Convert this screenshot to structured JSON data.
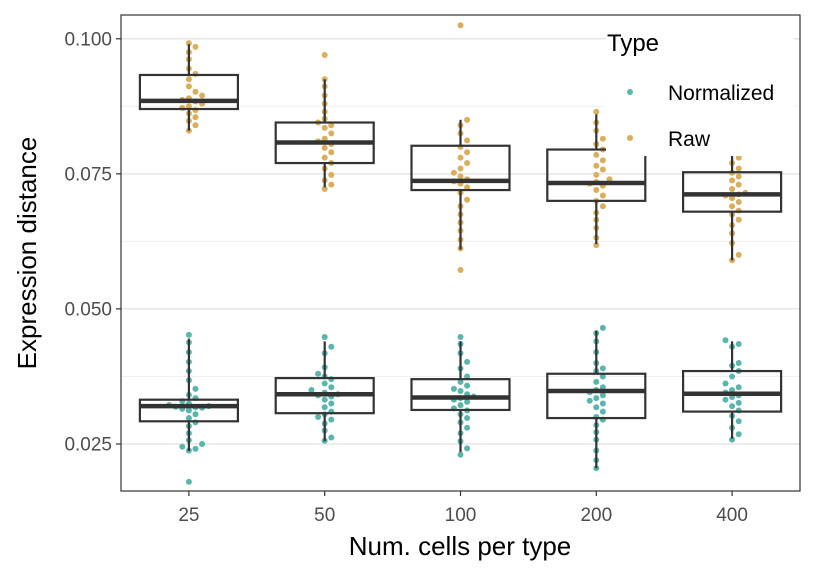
{
  "chart_data": {
    "type": "box",
    "xlabel": "Num. cells per type",
    "ylabel": "Expression distance",
    "categories": [
      "25",
      "50",
      "100",
      "200",
      "400"
    ],
    "ylim": [
      0.0163,
      0.1044
    ],
    "yticks": [
      0.025,
      0.05,
      0.075,
      0.1
    ],
    "ytick_labels": [
      "0.025",
      "0.050",
      "0.075",
      "0.100"
    ],
    "grid": true,
    "legend": {
      "title": "Type",
      "position": "top-right",
      "entries": [
        "Normalized",
        "Raw"
      ]
    },
    "series": [
      {
        "name": "Normalized",
        "color": "#5bb5ac",
        "boxes": [
          {
            "category": "25",
            "whisker_low": 0.0237,
            "q1": 0.0292,
            "median": 0.032,
            "q3": 0.0332,
            "whisker_high": 0.0445
          },
          {
            "category": "50",
            "whisker_low": 0.0255,
            "q1": 0.0307,
            "median": 0.0342,
            "q3": 0.0372,
            "whisker_high": 0.044
          },
          {
            "category": "100",
            "whisker_low": 0.0235,
            "q1": 0.0313,
            "median": 0.0336,
            "q3": 0.037,
            "whisker_high": 0.044
          },
          {
            "category": "200",
            "whisker_low": 0.0205,
            "q1": 0.0298,
            "median": 0.0348,
            "q3": 0.038,
            "whisker_high": 0.046
          },
          {
            "category": "400",
            "whisker_low": 0.026,
            "q1": 0.031,
            "median": 0.0343,
            "q3": 0.0385,
            "whisker_high": 0.044
          }
        ],
        "points": [
          [
            0.0452,
            0.0438,
            0.042,
            0.0402,
            0.0385,
            0.0368,
            0.0352,
            0.0341,
            0.0335,
            0.0329,
            0.0325,
            0.0322,
            0.032,
            0.0319,
            0.0318,
            0.0317,
            0.0315,
            0.0312,
            0.0305,
            0.0298,
            0.029,
            0.0283,
            0.027,
            0.0257,
            0.025,
            0.0245,
            0.0241,
            0.0238,
            0.018
          ],
          [
            0.0448,
            0.043,
            0.0418,
            0.0392,
            0.038,
            0.0375,
            0.037,
            0.0362,
            0.0355,
            0.035,
            0.0345,
            0.0342,
            0.034,
            0.0338,
            0.0332,
            0.0325,
            0.0318,
            0.031,
            0.0305,
            0.03,
            0.0295,
            0.0288,
            0.0275,
            0.0262,
            0.0256
          ],
          [
            0.0448,
            0.0435,
            0.0418,
            0.0402,
            0.039,
            0.0375,
            0.0365,
            0.0358,
            0.0352,
            0.0348,
            0.0342,
            0.0338,
            0.0335,
            0.0332,
            0.0328,
            0.0322,
            0.0316,
            0.0312,
            0.0305,
            0.0298,
            0.029,
            0.028,
            0.027,
            0.0255,
            0.0242,
            0.023
          ],
          [
            0.0465,
            0.0455,
            0.044,
            0.042,
            0.04,
            0.039,
            0.0385,
            0.0375,
            0.0365,
            0.0355,
            0.035,
            0.0346,
            0.034,
            0.0335,
            0.033,
            0.0325,
            0.0318,
            0.031,
            0.03,
            0.0295,
            0.0285,
            0.0272,
            0.0258,
            0.0238,
            0.022,
            0.0205
          ],
          [
            0.0442,
            0.0435,
            0.043,
            0.04,
            0.0395,
            0.0385,
            0.0375,
            0.0362,
            0.0355,
            0.035,
            0.0345,
            0.034,
            0.0337,
            0.0332,
            0.0326,
            0.032,
            0.0312,
            0.0302,
            0.0292,
            0.028,
            0.0268,
            0.0258
          ]
        ]
      },
      {
        "name": "Raw",
        "color": "#d9ae5d",
        "boxes": [
          {
            "category": "25",
            "whisker_low": 0.083,
            "q1": 0.087,
            "median": 0.0885,
            "q3": 0.0933,
            "whisker_high": 0.099
          },
          {
            "category": "50",
            "whisker_low": 0.0725,
            "q1": 0.077,
            "median": 0.0808,
            "q3": 0.0845,
            "whisker_high": 0.0925
          },
          {
            "category": "100",
            "whisker_low": 0.061,
            "q1": 0.072,
            "median": 0.0737,
            "q3": 0.0802,
            "whisker_high": 0.085
          },
          {
            "category": "200",
            "whisker_low": 0.062,
            "q1": 0.07,
            "median": 0.0733,
            "q3": 0.0795,
            "whisker_high": 0.086
          },
          {
            "category": "400",
            "whisker_low": 0.059,
            "q1": 0.068,
            "median": 0.0712,
            "q3": 0.0753,
            "whisker_high": 0.0805
          }
        ],
        "points": [
          [
            0.0992,
            0.0985,
            0.0975,
            0.0962,
            0.0945,
            0.0935,
            0.0925,
            0.0912,
            0.0902,
            0.0895,
            0.089,
            0.0887,
            0.0884,
            0.088,
            0.0875,
            0.0872,
            0.0868,
            0.0862,
            0.0855,
            0.0848,
            0.084,
            0.083
          ],
          [
            0.097,
            0.0925,
            0.0912,
            0.0895,
            0.088,
            0.0865,
            0.0852,
            0.0845,
            0.084,
            0.0835,
            0.0825,
            0.0815,
            0.081,
            0.0805,
            0.0798,
            0.079,
            0.078,
            0.077,
            0.076,
            0.0748,
            0.0738,
            0.073,
            0.0722
          ],
          [
            0.1025,
            0.085,
            0.084,
            0.0825,
            0.0812,
            0.08,
            0.079,
            0.078,
            0.077,
            0.076,
            0.0752,
            0.0745,
            0.074,
            0.0736,
            0.0732,
            0.0725,
            0.0715,
            0.0702,
            0.069,
            0.0675,
            0.066,
            0.0645,
            0.0628,
            0.0612,
            0.0572
          ],
          [
            0.0865,
            0.0845,
            0.083,
            0.0815,
            0.0805,
            0.0795,
            0.0785,
            0.0775,
            0.0765,
            0.0758,
            0.0748,
            0.074,
            0.0735,
            0.0732,
            0.0728,
            0.072,
            0.071,
            0.07,
            0.069,
            0.0678,
            0.0665,
            0.065,
            0.0632,
            0.0618
          ],
          [
            0.0875,
            0.0805,
            0.0795,
            0.078,
            0.077,
            0.076,
            0.0752,
            0.0745,
            0.0738,
            0.073,
            0.0722,
            0.0715,
            0.0712,
            0.071,
            0.0705,
            0.0698,
            0.069,
            0.0682,
            0.0675,
            0.0665,
            0.0655,
            0.064,
            0.0622,
            0.06,
            0.059
          ]
        ]
      }
    ]
  }
}
